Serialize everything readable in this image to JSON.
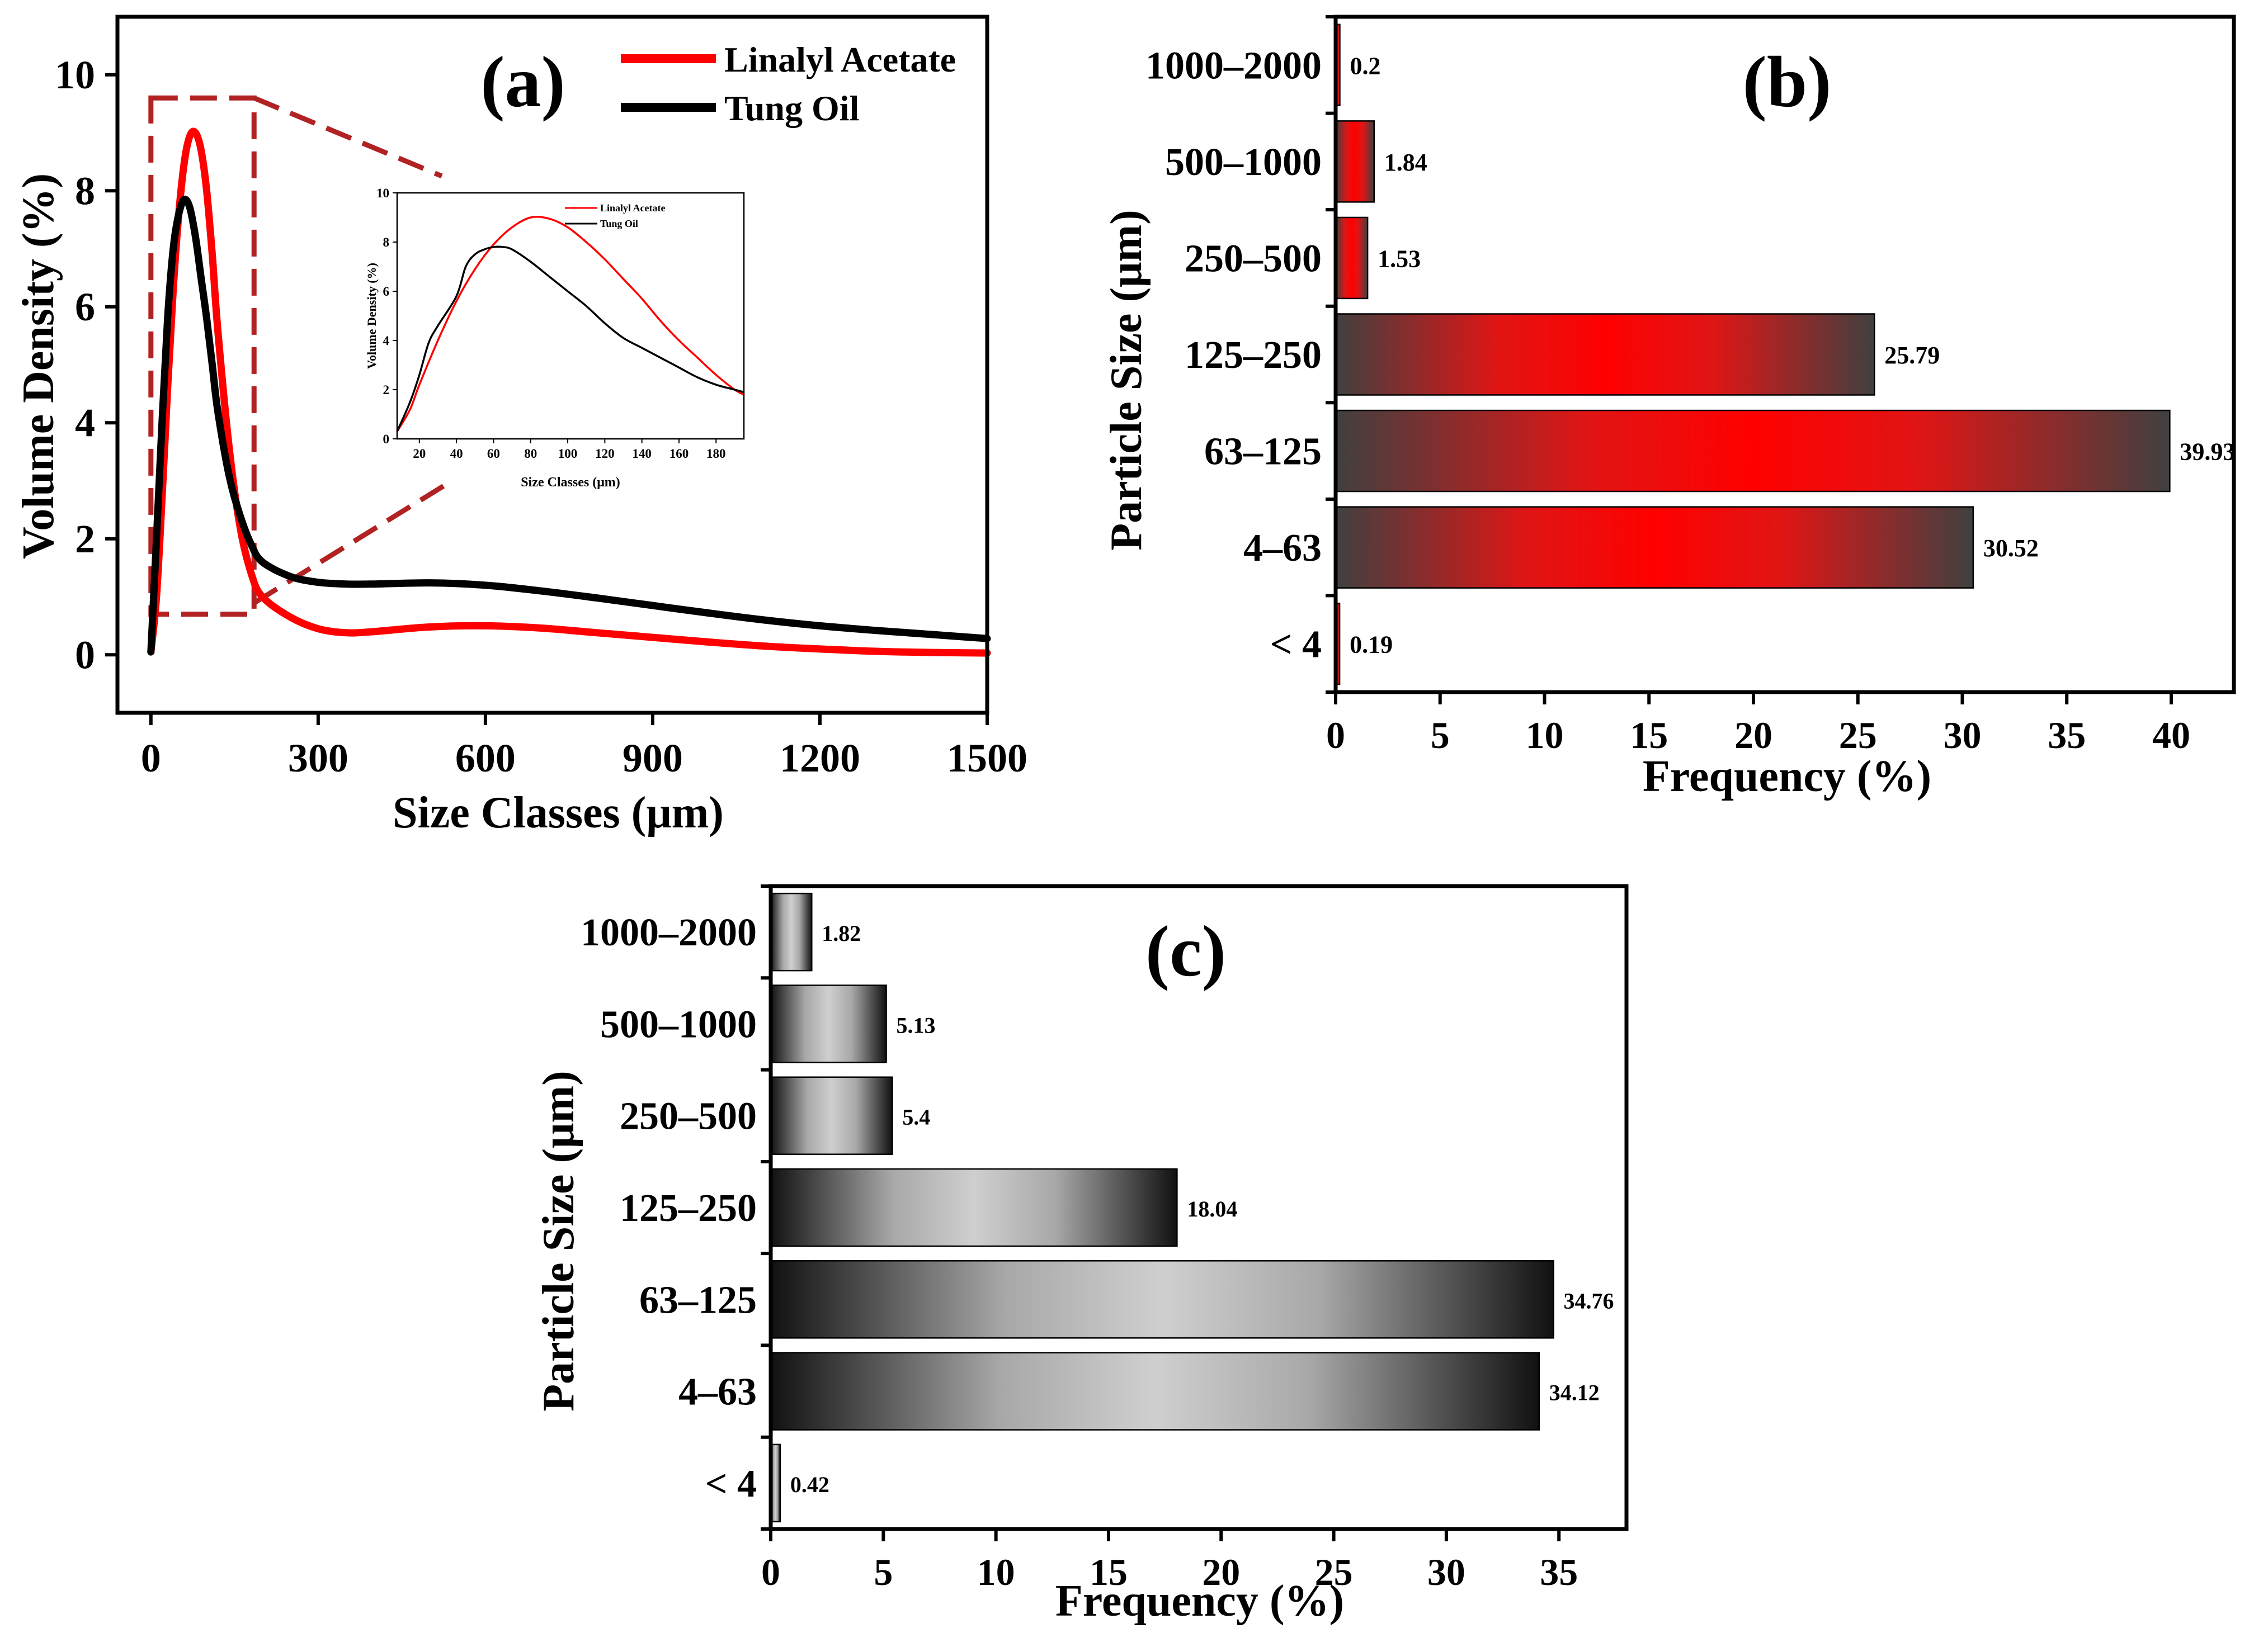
{
  "colors": {
    "linalyl": "#ff0000",
    "tung": "#000000",
    "zoom_box": "#b22222",
    "red_bar_center": "#ff0000",
    "red_bar_edge": "#404040",
    "gray_bar_center": "#c8c8c8",
    "gray_bar_edge": "#111111"
  },
  "chart_data": [
    {
      "type": "line",
      "panel_label": "(a)",
      "title": "",
      "xlabel": "Size Classes (μm)",
      "ylabel": "Volume Density (%)",
      "xlim": [
        -60,
        1500
      ],
      "ylim": [
        -1,
        11
      ],
      "xticks": [
        0,
        300,
        600,
        900,
        1200,
        1500
      ],
      "yticks": [
        0,
        2,
        4,
        6,
        8,
        10
      ],
      "legend": "top-right",
      "series": [
        {
          "name": "Linalyl Acetate",
          "color": "#ff0000",
          "x": [
            0,
            10,
            20,
            30,
            40,
            50,
            60,
            70,
            80,
            90,
            100,
            110,
            120,
            140,
            160,
            180,
            200,
            250,
            300,
            350,
            400,
            500,
            600,
            700,
            800,
            900,
            1000,
            1100,
            1200,
            1300,
            1400,
            1500
          ],
          "y": [
            0.05,
            1.0,
            2.7,
            4.6,
            6.3,
            7.6,
            8.5,
            8.95,
            9.0,
            8.7,
            8.0,
            6.9,
            5.6,
            3.6,
            2.2,
            1.4,
            1.0,
            0.65,
            0.45,
            0.38,
            0.4,
            0.48,
            0.5,
            0.46,
            0.38,
            0.3,
            0.22,
            0.15,
            0.1,
            0.06,
            0.04,
            0.03
          ]
        },
        {
          "name": "Tung Oil",
          "color": "#000000",
          "x": [
            0,
            10,
            20,
            30,
            40,
            50,
            60,
            70,
            80,
            90,
            100,
            110,
            120,
            140,
            160,
            180,
            200,
            250,
            300,
            350,
            400,
            500,
            600,
            700,
            800,
            900,
            1000,
            1100,
            1200,
            1300,
            1400,
            1500
          ],
          "y": [
            0.05,
            2.0,
            4.0,
            5.8,
            7.0,
            7.6,
            7.85,
            7.7,
            7.2,
            6.5,
            5.8,
            5.0,
            4.2,
            3.1,
            2.4,
            1.9,
            1.6,
            1.35,
            1.25,
            1.22,
            1.22,
            1.24,
            1.2,
            1.1,
            0.98,
            0.85,
            0.72,
            0.6,
            0.5,
            0.42,
            0.35,
            0.28
          ]
        }
      ],
      "inset": {
        "xlabel": "Size Classes (μm)",
        "ylabel": "Volume Density (%)",
        "xlim": [
          8,
          195
        ],
        "ylim": [
          0,
          10
        ],
        "xticks": [
          20,
          40,
          60,
          80,
          100,
          120,
          140,
          160,
          180
        ],
        "yticks": [
          0,
          2,
          4,
          6,
          8,
          10
        ],
        "legend": "top-right",
        "series": [
          {
            "name": "Linalyl Acetate",
            "color": "#ff0000",
            "x": [
              8,
              15,
              20,
              30,
              40,
              50,
              60,
              70,
              80,
              90,
              100,
              110,
              120,
              130,
              140,
              150,
              160,
              170,
              180,
              190,
              195
            ],
            "y": [
              0.3,
              1.2,
              2.2,
              4.0,
              5.6,
              6.9,
              7.9,
              8.6,
              9.0,
              8.95,
              8.6,
              8.0,
              7.3,
              6.5,
              5.7,
              4.8,
              4.0,
              3.3,
              2.6,
              2.0,
              1.8
            ]
          },
          {
            "name": "Tung Oil",
            "color": "#000000",
            "x": [
              8,
              15,
              20,
              25,
              30,
              40,
              45,
              50,
              55,
              60,
              65,
              70,
              80,
              90,
              100,
              110,
              120,
              130,
              140,
              150,
              160,
              170,
              180,
              190,
              195
            ],
            "y": [
              0.3,
              1.5,
              2.6,
              3.9,
              4.6,
              5.8,
              7.0,
              7.5,
              7.7,
              7.8,
              7.8,
              7.7,
              7.2,
              6.6,
              6.0,
              5.4,
              4.7,
              4.1,
              3.7,
              3.3,
              2.9,
              2.5,
              2.2,
              2.0,
              1.9
            ]
          }
        ]
      },
      "zoom_region": {
        "x": [
          0,
          185
        ],
        "y": [
          0.7,
          9.6
        ]
      }
    },
    {
      "type": "bar",
      "orientation": "horizontal",
      "panel_label": "(b)",
      "title": "",
      "xlabel": "Frequency (%)",
      "ylabel": "Particle Size (μm)",
      "xlim": [
        0,
        43
      ],
      "xticks": [
        0,
        5,
        10,
        15,
        20,
        25,
        30,
        35,
        40
      ],
      "categories": [
        "< 4",
        "4–63",
        "63–125",
        "125–250",
        "250–500",
        "500–1000",
        "1000–2000"
      ],
      "values": [
        0.19,
        30.52,
        39.93,
        25.79,
        1.53,
        1.84,
        0.2
      ],
      "value_labels": [
        "0.19",
        "30.52",
        "39.93",
        "25.79",
        "1.53",
        "1.84",
        "0.2"
      ],
      "bar_style": "red gradient"
    },
    {
      "type": "bar",
      "orientation": "horizontal",
      "panel_label": "(c)",
      "title": "",
      "xlabel": "Frequency (%)",
      "ylabel": "Particle Size (μm)",
      "xlim": [
        0,
        38
      ],
      "xticks": [
        0,
        5,
        10,
        15,
        20,
        25,
        30,
        35
      ],
      "categories": [
        "< 4",
        "4–63",
        "63–125",
        "125–250",
        "250–500",
        "500–1000",
        "1000–2000"
      ],
      "values": [
        0.42,
        34.12,
        34.76,
        18.04,
        5.4,
        5.13,
        1.82
      ],
      "value_labels": [
        "0.42",
        "34.12",
        "34.76",
        "18.04",
        "5.4",
        "5.13",
        "1.82"
      ],
      "bar_style": "gray gradient"
    }
  ]
}
